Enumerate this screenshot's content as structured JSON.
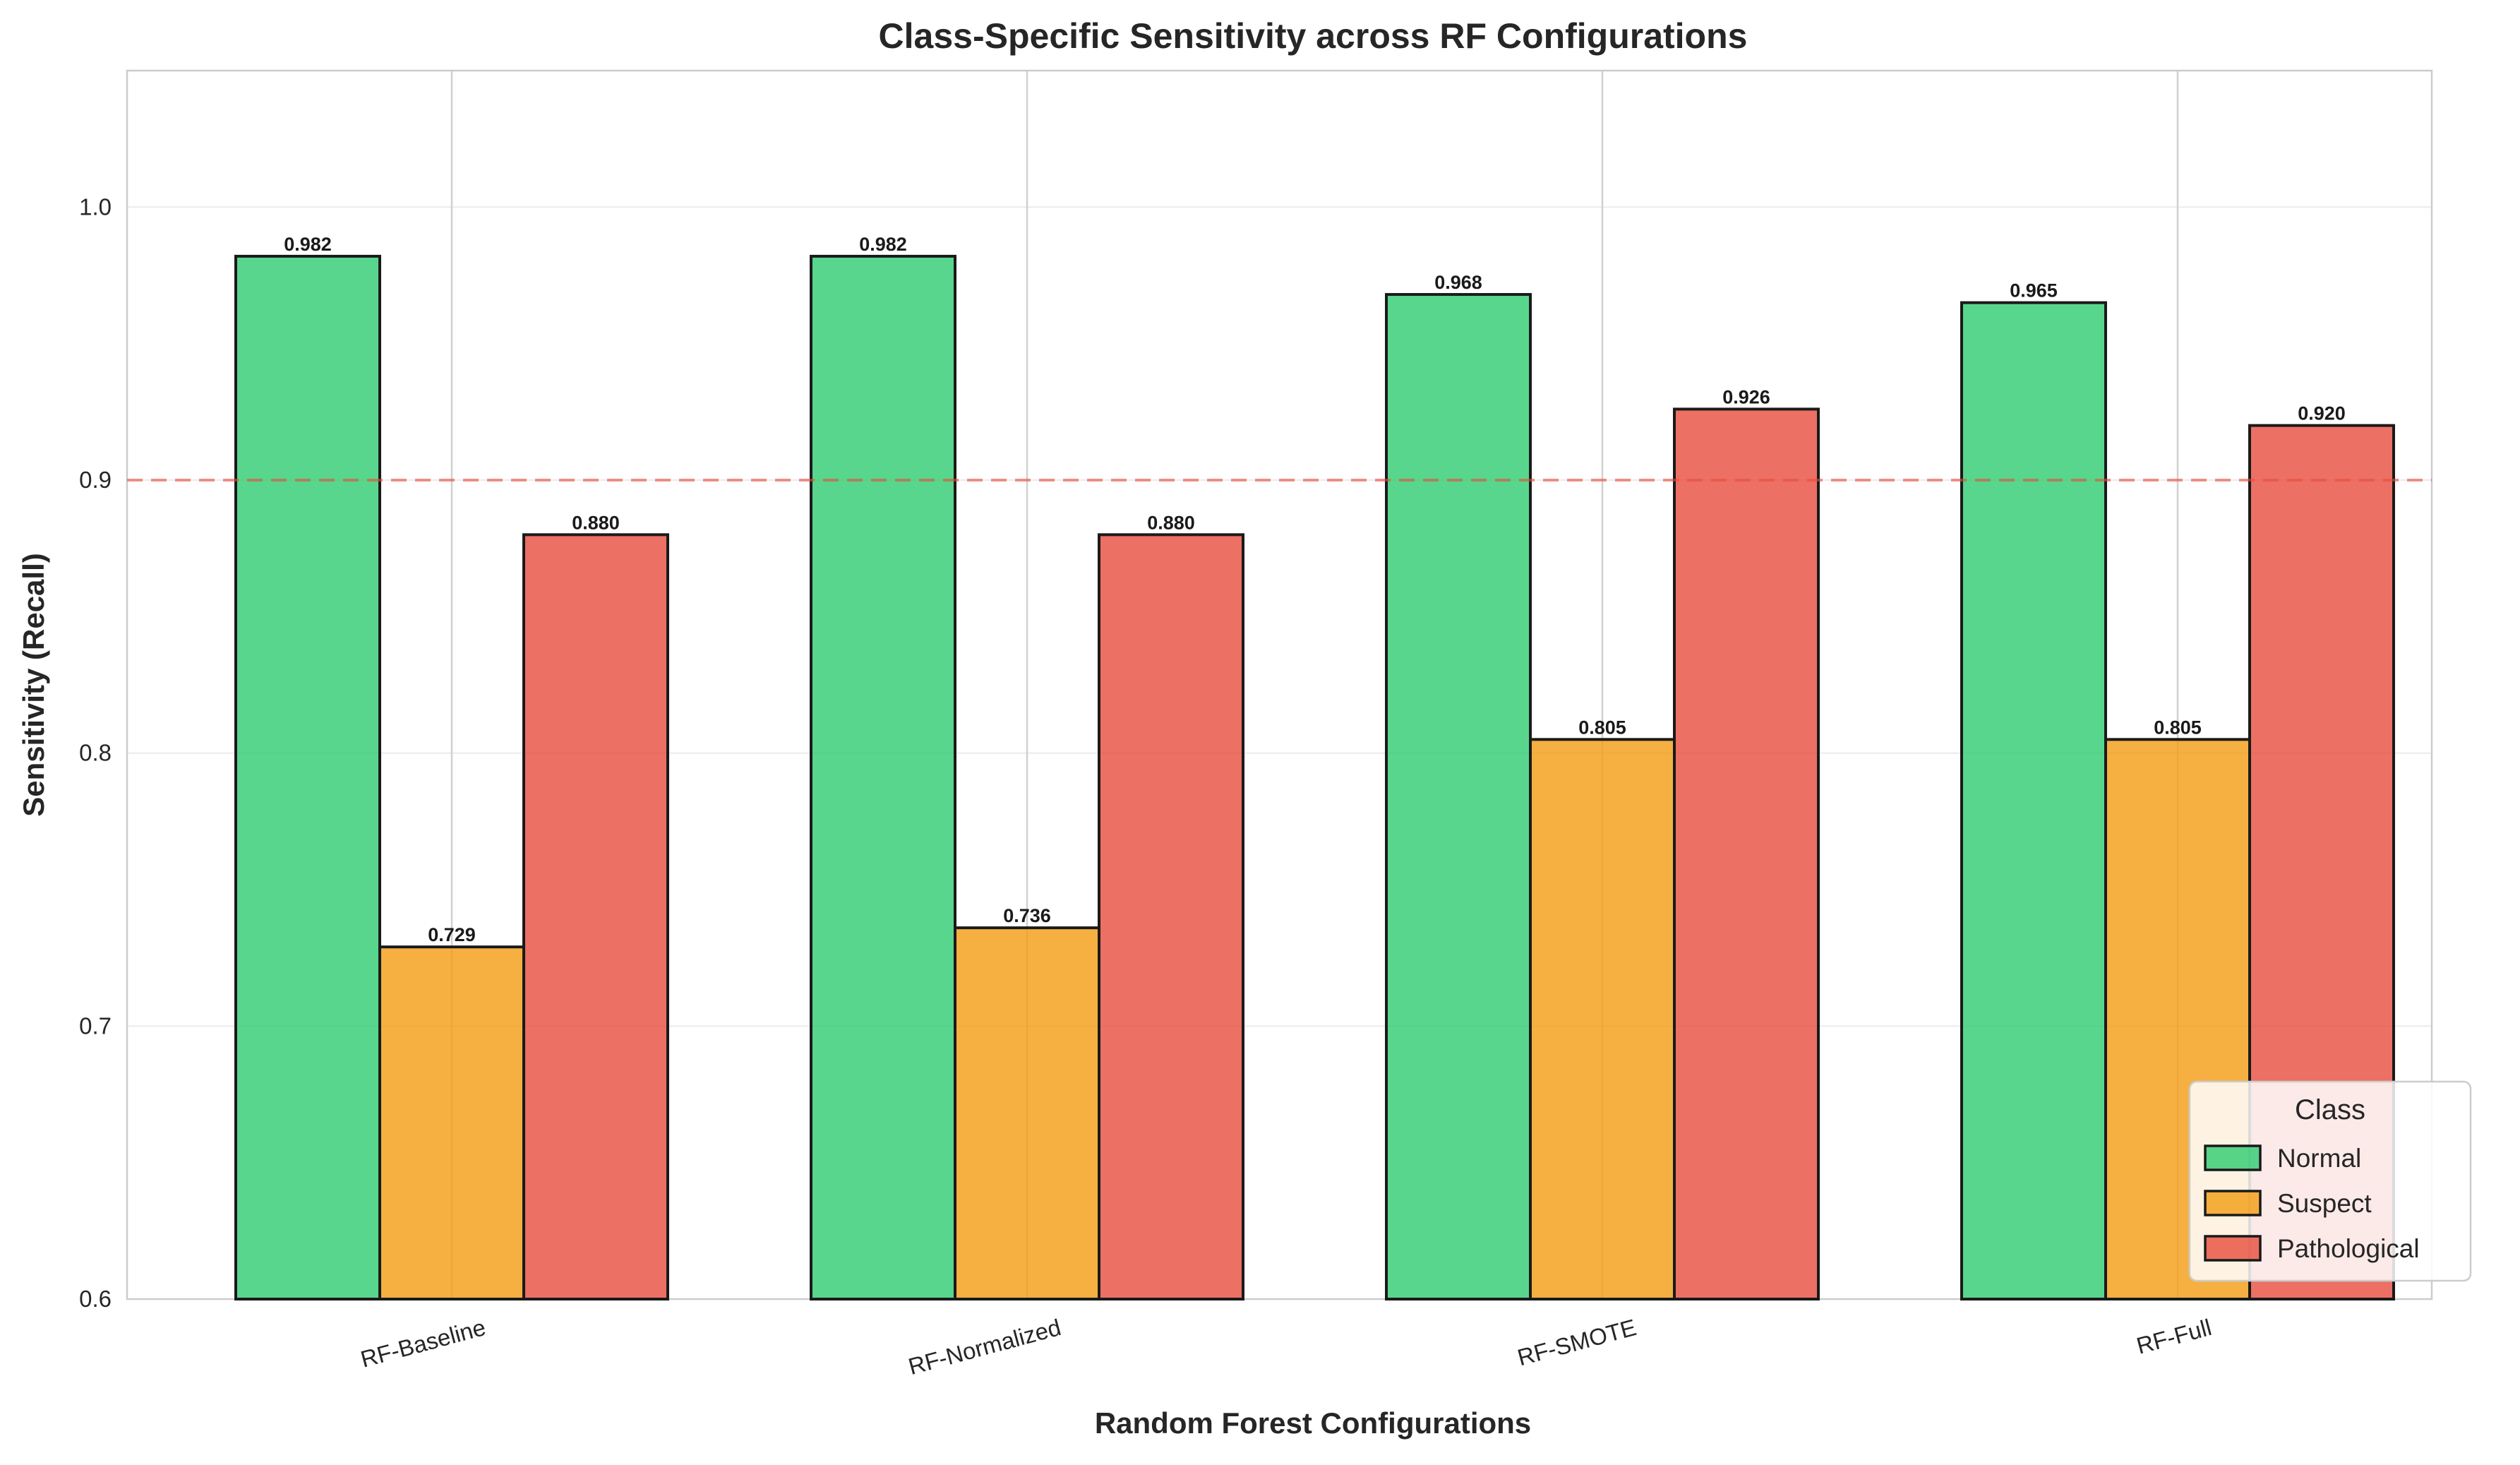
{
  "chart_data": {
    "type": "bar",
    "title": "Class-Specific Sensitivity across RF Configurations",
    "xlabel": "Random Forest Configurations",
    "ylabel": "Sensitivity (Recall)",
    "categories": [
      "RF-Baseline",
      "RF-Normalized",
      "RF-SMOTE",
      "RF-Full"
    ],
    "series": [
      {
        "name": "Normal",
        "color": "#2ecc71",
        "values": [
          0.982,
          0.982,
          0.968,
          0.965
        ],
        "labels": [
          "0.982",
          "0.982",
          "0.968",
          "0.965"
        ]
      },
      {
        "name": "Suspect",
        "color": "#f39c12",
        "values": [
          0.729,
          0.736,
          0.805,
          0.805
        ],
        "labels": [
          "0.729",
          "0.736",
          "0.805",
          "0.805"
        ]
      },
      {
        "name": "Pathological",
        "color": "#e74c3c",
        "values": [
          0.88,
          0.88,
          0.926,
          0.92
        ],
        "labels": [
          "0.880",
          "0.880",
          "0.926",
          "0.920"
        ]
      }
    ],
    "ylim": [
      0.6,
      1.05
    ],
    "yticks": [
      0.6,
      0.7,
      0.8,
      0.9,
      1.0
    ],
    "ytick_labels": [
      "0.6",
      "0.7",
      "0.8",
      "0.9",
      "1.0"
    ],
    "reference_line": {
      "y": 0.9,
      "color": "#e74c3c",
      "style": "dashed"
    },
    "legend": {
      "title": "Class",
      "placement": "lower-right"
    },
    "grid": true
  }
}
